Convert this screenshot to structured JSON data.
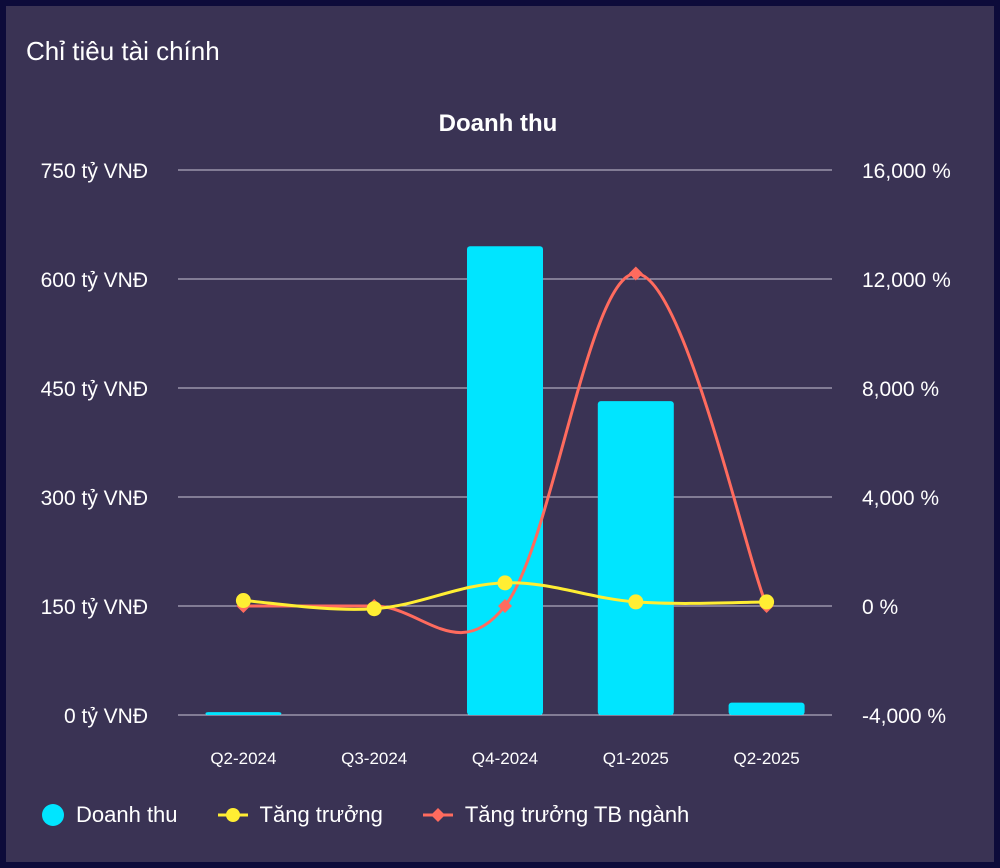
{
  "panel": {
    "title": "Chỉ tiêu tài chính"
  },
  "chart_data": {
    "type": "bar",
    "title": "Doanh thu",
    "categories": [
      "Q2-2024",
      "Q3-2024",
      "Q4-2024",
      "Q1-2025",
      "Q2-2025"
    ],
    "y_left": {
      "range": [
        0,
        750
      ],
      "ticks": [
        0,
        150,
        300,
        450,
        600,
        750
      ],
      "tick_labels": [
        "0 tỷ VNĐ",
        "150 tỷ VNĐ",
        "300 tỷ VNĐ",
        "450 tỷ VNĐ",
        "600 tỷ VNĐ",
        "750 tỷ VNĐ"
      ]
    },
    "y_right": {
      "range": [
        -4000,
        16000
      ],
      "ticks": [
        -4000,
        0,
        4000,
        8000,
        12000,
        16000
      ],
      "tick_labels": [
        "-4,000 %",
        "0 %",
        "4,000 %",
        "8,000 %",
        "12,000 %",
        "16,000 %"
      ]
    },
    "grid": true,
    "legend_position": "bottom-left",
    "series": [
      {
        "name": "Doanh thu",
        "type": "bar",
        "axis": "left",
        "color": "#00e5ff",
        "values": [
          4,
          0,
          645,
          432,
          17
        ]
      },
      {
        "name": "Tăng trưởng",
        "type": "line",
        "axis": "right",
        "color": "#ffee33",
        "values": [
          200,
          -100,
          850,
          150,
          150
        ]
      },
      {
        "name": "Tăng trưởng TB ngành",
        "type": "line",
        "axis": "right",
        "color": "#ff6b5e",
        "values": [
          0,
          0,
          0,
          12200,
          0
        ]
      }
    ]
  }
}
